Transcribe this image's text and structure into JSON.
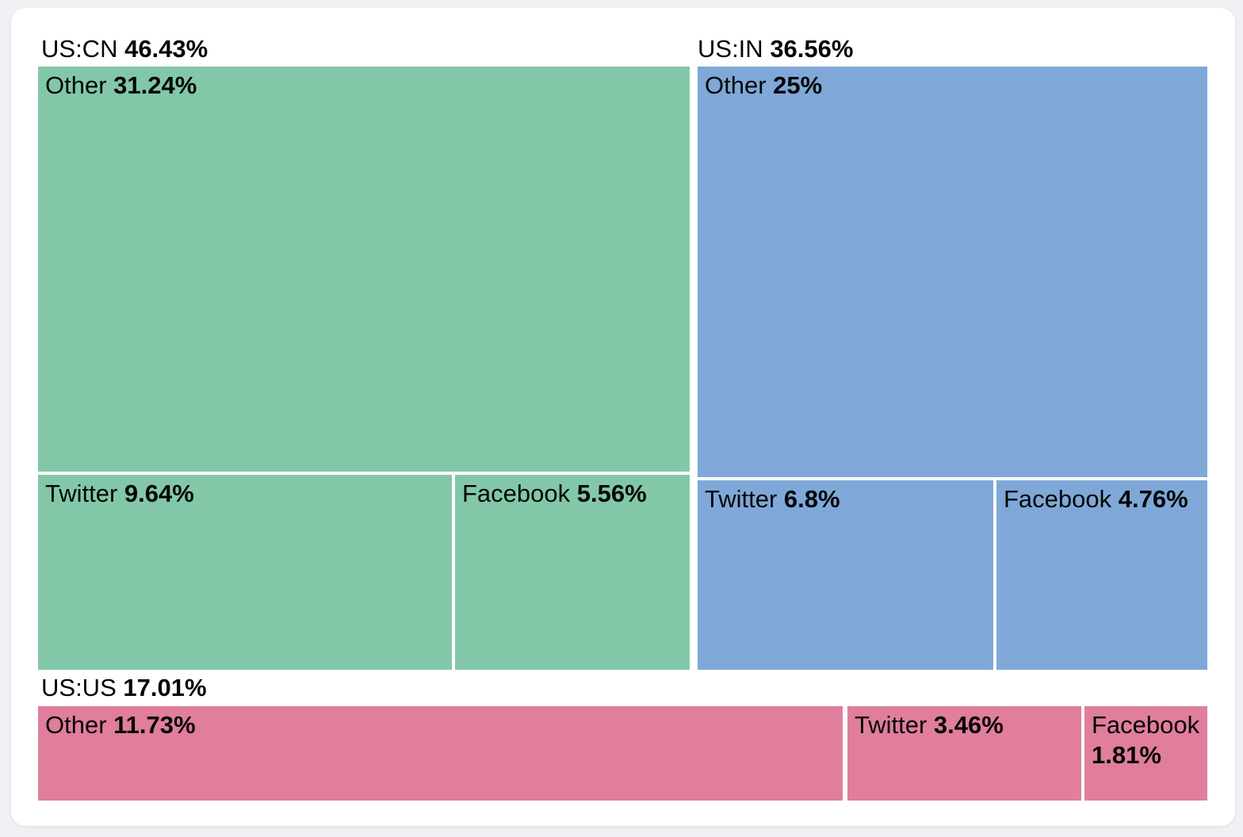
{
  "chart_data": {
    "type": "treemap",
    "unit": "percent",
    "legend_position": "none",
    "colors": {
      "us_cn": "#82c8a8",
      "us_in": "#7fa8d8",
      "us_us": "#e07e9c"
    },
    "groups": [
      {
        "label": "US:CN",
        "value": 46.43,
        "value_display": "46.43%",
        "color": "#82c8a8",
        "children": [
          {
            "name": "Other",
            "value": 31.24,
            "value_display": "31.24%"
          },
          {
            "name": "Twitter",
            "value": 9.64,
            "value_display": "9.64%"
          },
          {
            "name": "Facebook",
            "value": 5.56,
            "value_display": "5.56%"
          }
        ]
      },
      {
        "label": "US:IN",
        "value": 36.56,
        "value_display": "36.56%",
        "color": "#7fa8d8",
        "children": [
          {
            "name": "Other",
            "value": 25,
            "value_display": "25%"
          },
          {
            "name": "Twitter",
            "value": 6.8,
            "value_display": "6.8%"
          },
          {
            "name": "Facebook",
            "value": 4.76,
            "value_display": "4.76%"
          }
        ]
      },
      {
        "label": "US:US",
        "value": 17.01,
        "value_display": "17.01%",
        "color": "#e07e9c",
        "children": [
          {
            "name": "Other",
            "value": 11.73,
            "value_display": "11.73%"
          },
          {
            "name": "Twitter",
            "value": 3.46,
            "value_display": "3.46%"
          },
          {
            "name": "Facebook",
            "value": 1.81,
            "value_display": "1.81%"
          }
        ]
      }
    ]
  }
}
